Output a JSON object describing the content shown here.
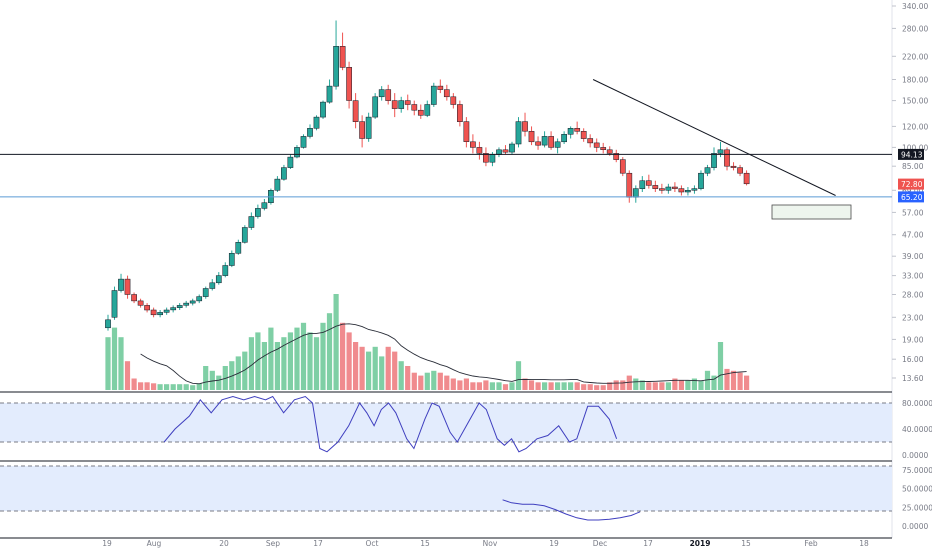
{
  "chart_data": {
    "type": "candlestick",
    "scale": "log",
    "up_color": "#26a69a",
    "down_color": "#ef5350",
    "volume_up_color": "#7fcfa5",
    "volume_down_color": "#f08b8e",
    "price_ticks": [
      "340.00",
      "280.00",
      "220.00",
      "180.00",
      "150.00",
      "120.00",
      "100.00",
      "85.00",
      "69.00",
      "57.00",
      "47.00",
      "39.00",
      "33.00",
      "28.00",
      "23.00",
      "19.00",
      "16.00",
      "13.60"
    ],
    "price_tick_values": [
      340,
      280,
      220,
      180,
      150,
      120,
      100,
      85,
      69,
      57,
      47,
      39,
      33,
      28,
      23,
      19,
      16,
      13.6
    ],
    "time_labels": [
      "19",
      "Aug",
      "20",
      "Sep",
      "17",
      "Oct",
      "15",
      "Nov",
      "19",
      "Dec",
      "17",
      "2019",
      "15",
      "Feb",
      "18"
    ],
    "time_label_bold": [
      false,
      false,
      false,
      false,
      false,
      false,
      false,
      false,
      false,
      false,
      false,
      true,
      false,
      false,
      false
    ],
    "price_badges": [
      {
        "label": "94.13",
        "value": 94.13,
        "bg": "#131722"
      },
      {
        "label": "72.80",
        "value": 72.8,
        "bg": "#ef5350"
      },
      {
        "label": "65.20",
        "value": 65.2,
        "bg": "#2962ff"
      }
    ],
    "horizontal_lines": [
      {
        "value": 94.13,
        "color": "#131722"
      },
      {
        "value": 65.2,
        "color": "#5b9bd5"
      }
    ],
    "trendline": {
      "from": {
        "x": 26.8,
        "y": 180
      },
      "to": {
        "x": 40.2,
        "y": 66
      },
      "color": "#131722"
    },
    "candles": [
      [
        0,
        21,
        23.5,
        20.5,
        22.5
      ],
      [
        0.36,
        23,
        30,
        22.5,
        29
      ],
      [
        0.72,
        29,
        33.5,
        28.5,
        32
      ],
      [
        1.08,
        32,
        33,
        27,
        28
      ],
      [
        1.44,
        28,
        28.5,
        26,
        26.5
      ],
      [
        1.8,
        26.5,
        27,
        25,
        25.5
      ],
      [
        2.16,
        25.5,
        26,
        24,
        24.5
      ],
      [
        2.52,
        24.5,
        25,
        23,
        23.5
      ],
      [
        2.88,
        23.5,
        24.5,
        23,
        24
      ],
      [
        3.24,
        24,
        25,
        23.5,
        24.5
      ],
      [
        3.6,
        24.5,
        25.5,
        24,
        25
      ],
      [
        3.96,
        25,
        26,
        24.5,
        25.5
      ],
      [
        4.32,
        25.5,
        26.5,
        25,
        26
      ],
      [
        4.68,
        26,
        27,
        25.5,
        26.5
      ],
      [
        5.04,
        26.5,
        28,
        26,
        27.5
      ],
      [
        5.4,
        27.5,
        30,
        27,
        29.5
      ],
      [
        5.76,
        29.5,
        32,
        29,
        31
      ],
      [
        6.12,
        31,
        34,
        30.5,
        33
      ],
      [
        6.48,
        33,
        37,
        32.5,
        36
      ],
      [
        6.84,
        36,
        41,
        35.5,
        40
      ],
      [
        7.2,
        40,
        45,
        39.5,
        44
      ],
      [
        7.56,
        44,
        51,
        43.5,
        50
      ],
      [
        7.92,
        50,
        57,
        49,
        55
      ],
      [
        8.28,
        55,
        61,
        54,
        59
      ],
      [
        8.64,
        59,
        64,
        58,
        62
      ],
      [
        9.0,
        62,
        70,
        61,
        69
      ],
      [
        9.36,
        69,
        78,
        68,
        76
      ],
      [
        9.72,
        76,
        86,
        75,
        84
      ],
      [
        10.08,
        84,
        94,
        83,
        92
      ],
      [
        10.44,
        92,
        102,
        91,
        100
      ],
      [
        10.8,
        100,
        112,
        99,
        110
      ],
      [
        11.16,
        110,
        122,
        108,
        118
      ],
      [
        11.52,
        118,
        132,
        116,
        130
      ],
      [
        11.88,
        130,
        150,
        128,
        148
      ],
      [
        12.24,
        148,
        180,
        146,
        170
      ],
      [
        12.6,
        170,
        300,
        165,
        240
      ],
      [
        12.96,
        240,
        270,
        195,
        200
      ],
      [
        13.32,
        200,
        210,
        140,
        150
      ],
      [
        13.68,
        150,
        160,
        118,
        125
      ],
      [
        14.04,
        125,
        132,
        100,
        108
      ],
      [
        14.4,
        108,
        135,
        105,
        130
      ],
      [
        14.76,
        130,
        160,
        128,
        155
      ],
      [
        15.12,
        155,
        170,
        150,
        165
      ],
      [
        15.48,
        165,
        172,
        145,
        150
      ],
      [
        15.84,
        150,
        160,
        130,
        140
      ],
      [
        16.2,
        140,
        155,
        135,
        150
      ],
      [
        16.56,
        150,
        158,
        138,
        145
      ],
      [
        16.92,
        145,
        150,
        132,
        138
      ],
      [
        17.28,
        138,
        145,
        128,
        132
      ],
      [
        17.64,
        132,
        150,
        130,
        145
      ],
      [
        18.0,
        145,
        175,
        142,
        170
      ],
      [
        18.36,
        170,
        180,
        160,
        165
      ],
      [
        18.72,
        165,
        172,
        150,
        155
      ],
      [
        19.08,
        155,
        160,
        140,
        145
      ],
      [
        19.44,
        145,
        150,
        120,
        125
      ],
      [
        19.8,
        125,
        130,
        100,
        105
      ],
      [
        20.16,
        105,
        112,
        95,
        100
      ],
      [
        20.52,
        100,
        105,
        90,
        95
      ],
      [
        20.88,
        95,
        100,
        85,
        88
      ],
      [
        21.24,
        88,
        96,
        85,
        94
      ],
      [
        21.6,
        94,
        100,
        92,
        98
      ],
      [
        21.96,
        98,
        102,
        94,
        96
      ],
      [
        22.32,
        96,
        105,
        94,
        103
      ],
      [
        22.68,
        103,
        130,
        100,
        125
      ],
      [
        23.04,
        125,
        135,
        110,
        115
      ],
      [
        23.4,
        115,
        120,
        102,
        105
      ],
      [
        23.76,
        105,
        110,
        98,
        102
      ],
      [
        24.12,
        102,
        115,
        100,
        110
      ],
      [
        24.48,
        110,
        115,
        98,
        100
      ],
      [
        24.84,
        100,
        108,
        95,
        105
      ],
      [
        25.2,
        105,
        115,
        103,
        112
      ],
      [
        25.56,
        112,
        120,
        108,
        118
      ],
      [
        25.92,
        118,
        125,
        112,
        115
      ],
      [
        26.28,
        115,
        118,
        105,
        108
      ],
      [
        26.64,
        108,
        112,
        100,
        104
      ],
      [
        27.0,
        104,
        108,
        96,
        100
      ],
      [
        27.36,
        100,
        104,
        95,
        98
      ],
      [
        27.72,
        98,
        101,
        93,
        95
      ],
      [
        28.08,
        95,
        98,
        88,
        90
      ],
      [
        28.44,
        90,
        92,
        78,
        80
      ],
      [
        28.8,
        80,
        82,
        62,
        65
      ],
      [
        29.16,
        65,
        72,
        62,
        70
      ],
      [
        29.52,
        70,
        78,
        68,
        75
      ],
      [
        29.88,
        75,
        79,
        70,
        72
      ],
      [
        30.24,
        72,
        75,
        68,
        70
      ],
      [
        30.6,
        70,
        73,
        67,
        69
      ],
      [
        30.96,
        69,
        73,
        67,
        71
      ],
      [
        31.32,
        71,
        74,
        68,
        70
      ],
      [
        31.68,
        70,
        72,
        66,
        68
      ],
      [
        32.04,
        68,
        71,
        66,
        69
      ],
      [
        32.4,
        69,
        72,
        67,
        70
      ],
      [
        32.76,
        70,
        82,
        69,
        80
      ],
      [
        33.12,
        80,
        86,
        78,
        84
      ],
      [
        33.48,
        84,
        100,
        82,
        95
      ],
      [
        33.84,
        95,
        105,
        92,
        98
      ],
      [
        34.2,
        98,
        100,
        82,
        85
      ],
      [
        34.56,
        85,
        88,
        82,
        84
      ],
      [
        34.92,
        84,
        86,
        78,
        80
      ],
      [
        35.28,
        80,
        82,
        72,
        73
      ]
    ],
    "volume": [
      [
        0,
        55
      ],
      [
        0.36,
        65
      ],
      [
        0.72,
        55
      ],
      [
        1.08,
        30
      ],
      [
        1.44,
        12
      ],
      [
        1.8,
        8
      ],
      [
        2.16,
        8
      ],
      [
        2.52,
        7
      ],
      [
        2.88,
        6
      ],
      [
        3.24,
        6
      ],
      [
        3.6,
        6
      ],
      [
        3.96,
        6
      ],
      [
        4.32,
        6
      ],
      [
        4.68,
        5
      ],
      [
        5.04,
        7
      ],
      [
        5.4,
        25
      ],
      [
        5.76,
        20
      ],
      [
        6.12,
        15
      ],
      [
        6.48,
        25
      ],
      [
        6.84,
        30
      ],
      [
        7.2,
        35
      ],
      [
        7.56,
        40
      ],
      [
        7.92,
        55
      ],
      [
        8.28,
        60
      ],
      [
        8.64,
        50
      ],
      [
        9.0,
        65
      ],
      [
        9.36,
        50
      ],
      [
        9.72,
        55
      ],
      [
        10.08,
        60
      ],
      [
        10.44,
        65
      ],
      [
        10.8,
        70
      ],
      [
        11.16,
        60
      ],
      [
        11.52,
        55
      ],
      [
        11.88,
        70
      ],
      [
        12.24,
        80
      ],
      [
        12.6,
        100
      ],
      [
        12.96,
        70
      ],
      [
        13.32,
        60
      ],
      [
        13.68,
        50
      ],
      [
        14.04,
        45
      ],
      [
        14.4,
        40
      ],
      [
        14.76,
        45
      ],
      [
        15.12,
        35
      ],
      [
        15.48,
        45
      ],
      [
        15.84,
        40
      ],
      [
        16.2,
        30
      ],
      [
        16.56,
        25
      ],
      [
        16.92,
        18
      ],
      [
        17.28,
        15
      ],
      [
        17.64,
        18
      ],
      [
        18.0,
        20
      ],
      [
        18.36,
        18
      ],
      [
        18.72,
        15
      ],
      [
        19.08,
        12
      ],
      [
        19.44,
        10
      ],
      [
        19.8,
        12
      ],
      [
        20.16,
        8
      ],
      [
        20.52,
        8
      ],
      [
        20.88,
        10
      ],
      [
        21.24,
        8
      ],
      [
        21.6,
        8
      ],
      [
        21.96,
        6
      ],
      [
        22.32,
        8
      ],
      [
        22.68,
        30
      ],
      [
        23.04,
        12
      ],
      [
        23.4,
        10
      ],
      [
        23.76,
        8
      ],
      [
        24.12,
        8
      ],
      [
        24.48,
        8
      ],
      [
        24.84,
        8
      ],
      [
        25.2,
        8
      ],
      [
        25.56,
        8
      ],
      [
        25.92,
        8
      ],
      [
        26.28,
        6
      ],
      [
        26.64,
        6
      ],
      [
        27.0,
        5
      ],
      [
        27.36,
        5
      ],
      [
        27.72,
        8
      ],
      [
        28.08,
        10
      ],
      [
        28.44,
        10
      ],
      [
        28.8,
        15
      ],
      [
        29.16,
        12
      ],
      [
        29.52,
        10
      ],
      [
        29.88,
        8
      ],
      [
        30.24,
        8
      ],
      [
        30.6,
        8
      ],
      [
        30.96,
        8
      ],
      [
        31.32,
        12
      ],
      [
        31.68,
        10
      ],
      [
        32.04,
        10
      ],
      [
        32.4,
        12
      ],
      [
        32.76,
        10
      ],
      [
        33.12,
        20
      ],
      [
        33.48,
        15
      ],
      [
        33.84,
        50
      ],
      [
        34.2,
        22
      ],
      [
        34.56,
        20
      ],
      [
        34.92,
        18
      ],
      [
        35.28,
        15
      ]
    ],
    "stoch_rsi": {
      "ticks": [
        "80.0000",
        "40.0000",
        "0.0000"
      ],
      "tick_values": [
        80,
        40,
        0
      ],
      "upper_band": 80,
      "lower_band": 20,
      "values": [
        [
          0,
          20
        ],
        [
          0.6,
          40
        ],
        [
          1.4,
          60
        ],
        [
          2.0,
          85
        ],
        [
          2.6,
          65
        ],
        [
          3.2,
          85
        ],
        [
          3.8,
          90
        ],
        [
          4.4,
          85
        ],
        [
          5.0,
          90
        ],
        [
          5.6,
          85
        ],
        [
          6.0,
          90
        ],
        [
          6.6,
          65
        ],
        [
          7.2,
          85
        ],
        [
          7.8,
          90
        ],
        [
          8.2,
          80
        ],
        [
          8.6,
          10
        ],
        [
          9.0,
          5
        ],
        [
          9.6,
          20
        ],
        [
          10.2,
          45
        ],
        [
          10.8,
          80
        ],
        [
          11.2,
          65
        ],
        [
          11.6,
          45
        ],
        [
          12.0,
          70
        ],
        [
          12.4,
          80
        ],
        [
          12.8,
          65
        ],
        [
          13.4,
          25
        ],
        [
          13.8,
          10
        ],
        [
          14.4,
          55
        ],
        [
          14.8,
          80
        ],
        [
          15.2,
          75
        ],
        [
          15.8,
          35
        ],
        [
          16.2,
          20
        ],
        [
          16.8,
          50
        ],
        [
          17.4,
          80
        ],
        [
          17.8,
          70
        ],
        [
          18.4,
          25
        ],
        [
          18.8,
          15
        ],
        [
          19.2,
          25
        ],
        [
          19.6,
          5
        ],
        [
          20.0,
          10
        ],
        [
          20.6,
          25
        ],
        [
          21.2,
          30
        ],
        [
          21.8,
          45
        ],
        [
          22.4,
          20
        ],
        [
          22.8,
          25
        ],
        [
          23.4,
          75
        ],
        [
          24.0,
          75
        ],
        [
          24.6,
          55
        ],
        [
          25.0,
          25
        ]
      ]
    },
    "rsi": {
      "ticks": [
        "75.0000",
        "50.0000",
        "25.0000",
        "0.0000"
      ],
      "tick_values": [
        75,
        50,
        25,
        0
      ],
      "upper_band": 80,
      "lower_band": 20,
      "values": [
        [
          16.3,
          35
        ],
        [
          16.8,
          31
        ],
        [
          17.4,
          29
        ],
        [
          18.0,
          29
        ],
        [
          18.6,
          27
        ],
        [
          19.2,
          22
        ],
        [
          19.8,
          16
        ],
        [
          20.4,
          11
        ],
        [
          21.0,
          8
        ],
        [
          21.6,
          8
        ],
        [
          22.2,
          9
        ],
        [
          22.8,
          11
        ],
        [
          23.4,
          14
        ],
        [
          23.9,
          19
        ]
      ]
    }
  },
  "colors": {
    "axis_text": "#787b86",
    "grid_band": "#e3ecfd",
    "indicator_line": "#3f3fbf",
    "volume_ma": "#2a2e39"
  }
}
